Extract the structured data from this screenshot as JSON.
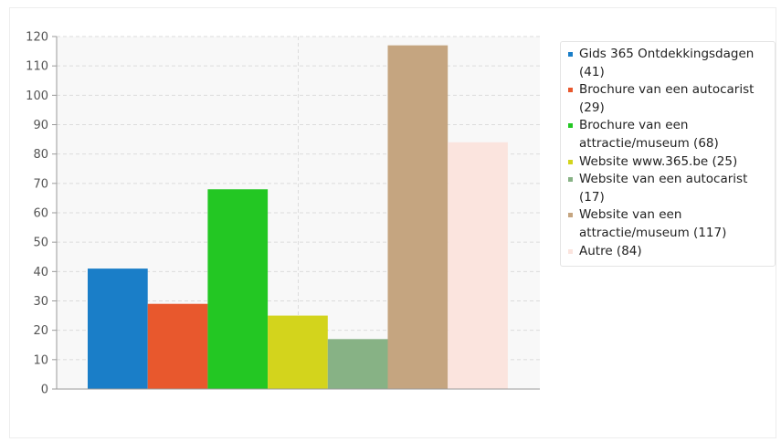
{
  "chart_data": {
    "type": "bar",
    "title": "",
    "xlabel": "",
    "ylabel": "",
    "ylim": [
      0,
      120
    ],
    "yticks": [
      0,
      10,
      20,
      30,
      40,
      50,
      60,
      70,
      80,
      90,
      100,
      110,
      120
    ],
    "grid": true,
    "legend_position": "right",
    "series": [
      {
        "label": "Gids 365 Ontdekkingsdagen (41)",
        "value": 41,
        "color": "#1a7ec8"
      },
      {
        "label": "Brochure van een autocarist (29)",
        "value": 29,
        "color": "#e8582d"
      },
      {
        "label": "Brochure van een attractie/museum (68)",
        "value": 68,
        "color": "#23c723"
      },
      {
        "label": "Website www.365.be (25)",
        "value": 25,
        "color": "#d3d41c"
      },
      {
        "label": "Website van een autocarist (17)",
        "value": 17,
        "color": "#87b285"
      },
      {
        "label": "Website van een attractie/museum (117)",
        "value": 117,
        "color": "#c5a580"
      },
      {
        "label": "Autre (84)",
        "value": 84,
        "color": "#fbe4de"
      }
    ]
  }
}
